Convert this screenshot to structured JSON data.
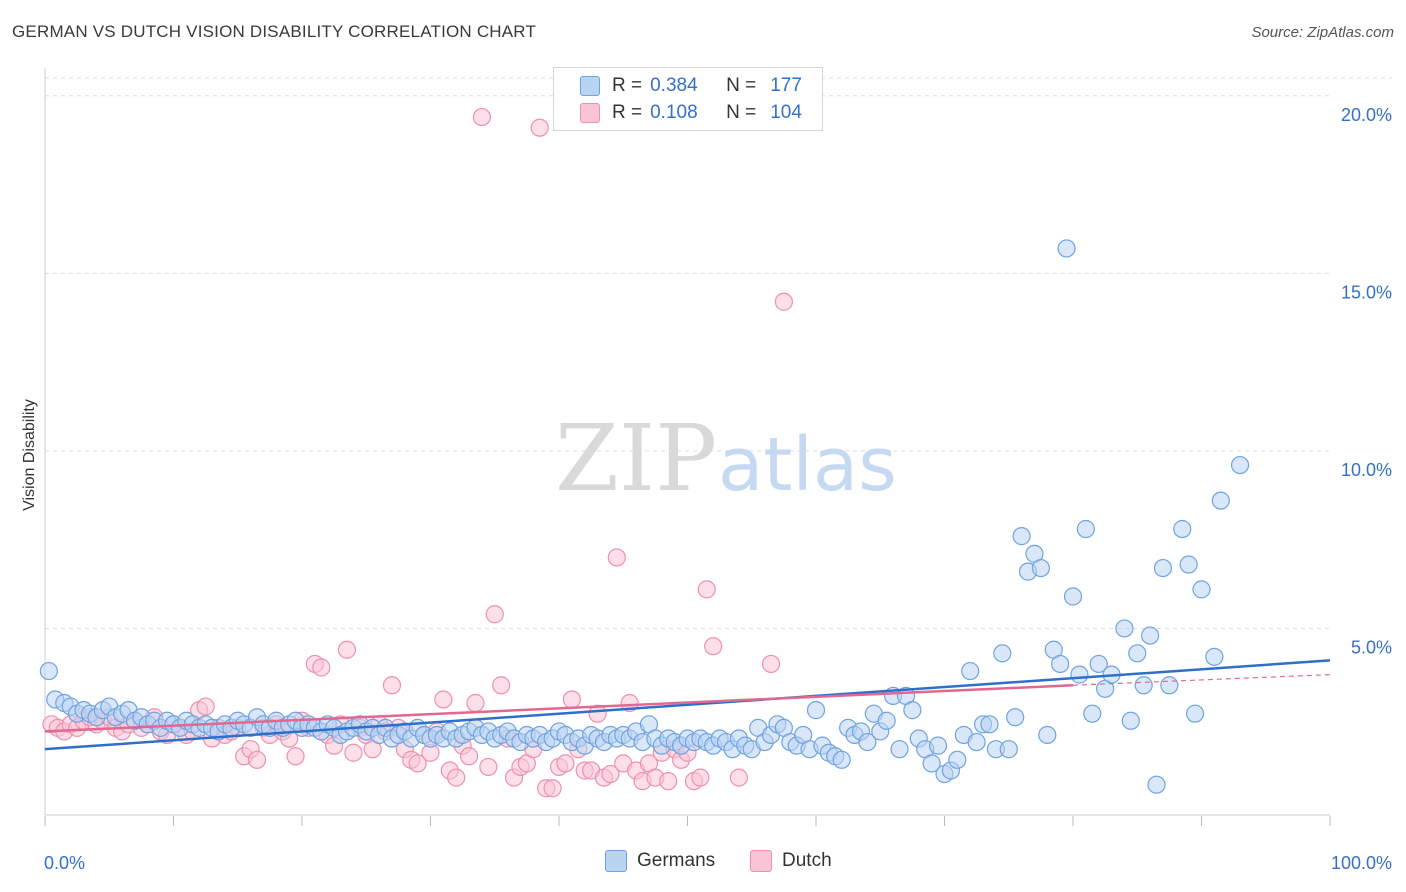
{
  "title": "GERMAN VS DUTCH VISION DISABILITY CORRELATION CHART",
  "source": "Source: ZipAtlas.com",
  "watermark": {
    "zip": "ZIP",
    "atlas": "atlas"
  },
  "colors": {
    "german": "#6fa3e0",
    "german_fill": "#b9d3f3",
    "dutch": "#ef8fb0",
    "dutch_fill": "#f9c4d5",
    "german_line": "#2f6fcc",
    "dutch_line": "#e2688f",
    "tick_text": "#3470c8"
  },
  "legend": {
    "german": {
      "r_label": "R =",
      "r_value": "0.384",
      "n_label": "N =",
      "n_value": "177"
    },
    "dutch": {
      "r_label": "R =",
      "r_value": "0.108",
      "n_label": "N =",
      "n_value": "104"
    }
  },
  "bottom_legend": {
    "german": "Germans",
    "dutch": "Dutch"
  },
  "chart_data": {
    "type": "scatter",
    "title": "GERMAN VS DUTCH VISION DISABILITY CORRELATION CHART",
    "xlabel": "",
    "ylabel": "Vision Disability",
    "xlim": [
      0,
      100
    ],
    "ylim": [
      0,
      20.5
    ],
    "x_tick_labels": [
      "0.0%",
      "100.0%"
    ],
    "y_ticks": [
      5,
      10,
      15,
      20
    ],
    "y_tick_labels": [
      "5.0%",
      "10.0%",
      "15.0%",
      "20.0%"
    ],
    "grid": true,
    "series": [
      {
        "name": "Germans",
        "trend": {
          "x0": 0,
          "y0": 1.6,
          "x1": 100,
          "y1": 4.1
        },
        "points": [
          [
            0.3,
            3.8
          ],
          [
            0.8,
            3.0
          ],
          [
            1.5,
            2.9
          ],
          [
            2.0,
            2.8
          ],
          [
            2.5,
            2.6
          ],
          [
            3.0,
            2.7
          ],
          [
            3.5,
            2.6
          ],
          [
            4.0,
            2.5
          ],
          [
            4.5,
            2.7
          ],
          [
            5.0,
            2.8
          ],
          [
            5.5,
            2.5
          ],
          [
            6.0,
            2.6
          ],
          [
            6.5,
            2.7
          ],
          [
            7.0,
            2.4
          ],
          [
            7.5,
            2.5
          ],
          [
            8.0,
            2.3
          ],
          [
            8.5,
            2.4
          ],
          [
            9.0,
            2.2
          ],
          [
            9.5,
            2.4
          ],
          [
            10.0,
            2.3
          ],
          [
            10.5,
            2.2
          ],
          [
            11.0,
            2.4
          ],
          [
            11.5,
            2.3
          ],
          [
            12.0,
            2.2
          ],
          [
            12.5,
            2.3
          ],
          [
            13.0,
            2.2
          ],
          [
            13.5,
            2.1
          ],
          [
            14.0,
            2.3
          ],
          [
            14.5,
            2.2
          ],
          [
            15.0,
            2.4
          ],
          [
            15.5,
            2.3
          ],
          [
            16.0,
            2.2
          ],
          [
            16.5,
            2.5
          ],
          [
            17.0,
            2.3
          ],
          [
            17.5,
            2.2
          ],
          [
            18.0,
            2.4
          ],
          [
            18.5,
            2.2
          ],
          [
            19.0,
            2.3
          ],
          [
            19.5,
            2.4
          ],
          [
            20.0,
            2.2
          ],
          [
            20.5,
            2.3
          ],
          [
            21.0,
            2.2
          ],
          [
            21.5,
            2.1
          ],
          [
            22.0,
            2.3
          ],
          [
            22.5,
            2.2
          ],
          [
            23.0,
            2.0
          ],
          [
            23.5,
            2.1
          ],
          [
            24.0,
            2.2
          ],
          [
            24.5,
            2.3
          ],
          [
            25.0,
            2.1
          ],
          [
            25.5,
            2.2
          ],
          [
            26.0,
            2.0
          ],
          [
            26.5,
            2.2
          ],
          [
            27.0,
            1.9
          ],
          [
            27.5,
            2.0
          ],
          [
            28.0,
            2.1
          ],
          [
            28.5,
            1.9
          ],
          [
            29.0,
            2.2
          ],
          [
            29.5,
            2.0
          ],
          [
            30.0,
            1.9
          ],
          [
            30.5,
            2.0
          ],
          [
            31.0,
            1.9
          ],
          [
            31.5,
            2.1
          ],
          [
            32.0,
            1.9
          ],
          [
            32.5,
            2.0
          ],
          [
            33.0,
            2.1
          ],
          [
            33.5,
            2.2
          ],
          [
            34.0,
            2.0
          ],
          [
            34.5,
            2.1
          ],
          [
            35.0,
            1.9
          ],
          [
            35.5,
            2.0
          ],
          [
            36.0,
            2.1
          ],
          [
            36.5,
            1.9
          ],
          [
            37.0,
            1.8
          ],
          [
            37.5,
            2.0
          ],
          [
            38.0,
            1.9
          ],
          [
            38.5,
            2.0
          ],
          [
            39.0,
            1.8
          ],
          [
            39.5,
            1.9
          ],
          [
            40.0,
            2.1
          ],
          [
            40.5,
            2.0
          ],
          [
            41.0,
            1.8
          ],
          [
            41.5,
            1.9
          ],
          [
            42.0,
            1.7
          ],
          [
            42.5,
            2.0
          ],
          [
            43.0,
            1.9
          ],
          [
            43.5,
            1.8
          ],
          [
            44.0,
            2.0
          ],
          [
            44.5,
            1.9
          ],
          [
            45.0,
            2.0
          ],
          [
            45.5,
            1.9
          ],
          [
            46.0,
            2.1
          ],
          [
            46.5,
            1.8
          ],
          [
            47.0,
            2.3
          ],
          [
            47.5,
            1.9
          ],
          [
            48.0,
            1.7
          ],
          [
            48.5,
            1.9
          ],
          [
            49.0,
            1.8
          ],
          [
            49.5,
            1.7
          ],
          [
            50.0,
            1.9
          ],
          [
            50.5,
            1.8
          ],
          [
            51.0,
            1.9
          ],
          [
            51.5,
            1.8
          ],
          [
            52.0,
            1.7
          ],
          [
            52.5,
            1.9
          ],
          [
            53.0,
            1.8
          ],
          [
            53.5,
            1.6
          ],
          [
            54.0,
            1.9
          ],
          [
            54.5,
            1.7
          ],
          [
            55.0,
            1.6
          ],
          [
            55.5,
            2.2
          ],
          [
            56.0,
            1.8
          ],
          [
            56.5,
            2.0
          ],
          [
            57.0,
            2.3
          ],
          [
            57.5,
            2.2
          ],
          [
            58.0,
            1.8
          ],
          [
            58.5,
            1.7
          ],
          [
            59.0,
            2.0
          ],
          [
            59.5,
            1.6
          ],
          [
            60.0,
            2.7
          ],
          [
            60.5,
            1.7
          ],
          [
            61.0,
            1.5
          ],
          [
            61.5,
            1.4
          ],
          [
            62.0,
            1.3
          ],
          [
            62.5,
            2.2
          ],
          [
            63.0,
            2.0
          ],
          [
            63.5,
            2.1
          ],
          [
            64.0,
            1.8
          ],
          [
            64.5,
            2.6
          ],
          [
            65.0,
            2.1
          ],
          [
            65.5,
            2.4
          ],
          [
            66.0,
            3.1
          ],
          [
            66.5,
            1.6
          ],
          [
            67.0,
            3.1
          ],
          [
            67.5,
            2.7
          ],
          [
            68.0,
            1.9
          ],
          [
            68.5,
            1.6
          ],
          [
            69.0,
            1.2
          ],
          [
            69.5,
            1.7
          ],
          [
            70.0,
            0.9
          ],
          [
            70.5,
            1.0
          ],
          [
            71.0,
            1.3
          ],
          [
            71.5,
            2.0
          ],
          [
            72.0,
            3.8
          ],
          [
            72.5,
            1.8
          ],
          [
            73.0,
            2.3
          ],
          [
            73.5,
            2.3
          ],
          [
            74.0,
            1.6
          ],
          [
            74.5,
            4.3
          ],
          [
            75.0,
            1.6
          ],
          [
            75.5,
            2.5
          ],
          [
            76.0,
            7.6
          ],
          [
            76.5,
            6.6
          ],
          [
            77.0,
            7.1
          ],
          [
            77.5,
            6.7
          ],
          [
            78.0,
            2.0
          ],
          [
            78.5,
            4.4
          ],
          [
            79.0,
            4.0
          ],
          [
            79.5,
            15.7
          ],
          [
            80.0,
            5.9
          ],
          [
            80.5,
            3.7
          ],
          [
            81.0,
            7.8
          ],
          [
            81.5,
            2.6
          ],
          [
            82.0,
            4.0
          ],
          [
            82.5,
            3.3
          ],
          [
            83.0,
            3.7
          ],
          [
            84.0,
            5.0
          ],
          [
            84.5,
            2.4
          ],
          [
            85.0,
            4.3
          ],
          [
            85.5,
            3.4
          ],
          [
            86.0,
            4.8
          ],
          [
            86.5,
            0.6
          ],
          [
            87.0,
            6.7
          ],
          [
            87.5,
            3.4
          ],
          [
            88.5,
            7.8
          ],
          [
            89.0,
            6.8
          ],
          [
            89.5,
            2.6
          ],
          [
            90.0,
            6.1
          ],
          [
            91.0,
            4.2
          ],
          [
            91.5,
            8.6
          ],
          [
            93.0,
            9.6
          ]
        ]
      },
      {
        "name": "Dutch",
        "trend": {
          "x0": 0,
          "y0": 2.1,
          "x1": 80,
          "y1": 3.4,
          "dash_to_x": 100,
          "dash_to_y": 3.7
        },
        "points": [
          [
            0.5,
            2.3
          ],
          [
            1.0,
            2.2
          ],
          [
            1.5,
            2.1
          ],
          [
            2.0,
            2.3
          ],
          [
            2.5,
            2.2
          ],
          [
            3.0,
            2.4
          ],
          [
            3.5,
            2.5
          ],
          [
            4.0,
            2.3
          ],
          [
            4.5,
            2.4
          ],
          [
            5.0,
            2.5
          ],
          [
            5.5,
            2.2
          ],
          [
            6.0,
            2.1
          ],
          [
            6.5,
            2.3
          ],
          [
            7.0,
            2.4
          ],
          [
            7.5,
            2.2
          ],
          [
            8.0,
            2.3
          ],
          [
            8.5,
            2.5
          ],
          [
            9.0,
            2.1
          ],
          [
            9.5,
            2.0
          ],
          [
            10.0,
            2.3
          ],
          [
            10.5,
            2.2
          ],
          [
            11.0,
            2.0
          ],
          [
            11.5,
            2.1
          ],
          [
            12.0,
            2.7
          ],
          [
            12.5,
            2.8
          ],
          [
            13.0,
            1.9
          ],
          [
            13.5,
            2.2
          ],
          [
            14.0,
            2.0
          ],
          [
            14.5,
            2.1
          ],
          [
            15.0,
            2.2
          ],
          [
            15.5,
            1.4
          ],
          [
            16.0,
            1.6
          ],
          [
            16.5,
            1.3
          ],
          [
            17.0,
            2.2
          ],
          [
            17.5,
            2.0
          ],
          [
            18.0,
            2.3
          ],
          [
            18.5,
            2.1
          ],
          [
            19.0,
            1.9
          ],
          [
            19.5,
            1.4
          ],
          [
            20.0,
            2.4
          ],
          [
            20.5,
            2.2
          ],
          [
            21.0,
            4.0
          ],
          [
            21.5,
            3.9
          ],
          [
            22.0,
            2.0
          ],
          [
            22.5,
            1.7
          ],
          [
            23.0,
            2.3
          ],
          [
            23.5,
            4.4
          ],
          [
            24.0,
            1.5
          ],
          [
            24.5,
            2.2
          ],
          [
            25.0,
            2.0
          ],
          [
            25.5,
            1.6
          ],
          [
            26.0,
            2.3
          ],
          [
            26.5,
            2.1
          ],
          [
            27.0,
            3.4
          ],
          [
            27.5,
            2.2
          ],
          [
            28.0,
            1.6
          ],
          [
            28.5,
            1.3
          ],
          [
            29.0,
            1.2
          ],
          [
            29.5,
            2.0
          ],
          [
            30.0,
            1.5
          ],
          [
            30.5,
            2.1
          ],
          [
            31.0,
            3.0
          ],
          [
            31.5,
            1.0
          ],
          [
            32.0,
            0.8
          ],
          [
            32.5,
            1.7
          ],
          [
            33.0,
            1.4
          ],
          [
            33.5,
            2.9
          ],
          [
            34.0,
            19.4
          ],
          [
            34.5,
            1.1
          ],
          [
            35.0,
            5.4
          ],
          [
            35.5,
            3.4
          ],
          [
            36.0,
            1.9
          ],
          [
            36.5,
            0.8
          ],
          [
            37.0,
            1.1
          ],
          [
            37.5,
            1.2
          ],
          [
            38.0,
            1.6
          ],
          [
            38.5,
            19.1
          ],
          [
            39.0,
            0.5
          ],
          [
            39.5,
            0.5
          ],
          [
            40.0,
            1.1
          ],
          [
            40.5,
            1.2
          ],
          [
            41.0,
            3.0
          ],
          [
            41.5,
            1.6
          ],
          [
            42.0,
            1.0
          ],
          [
            42.5,
            1.0
          ],
          [
            43.0,
            2.6
          ],
          [
            43.5,
            0.8
          ],
          [
            44.0,
            0.9
          ],
          [
            44.5,
            7.0
          ],
          [
            45.0,
            1.2
          ],
          [
            45.5,
            2.9
          ],
          [
            46.0,
            1.0
          ],
          [
            46.5,
            0.7
          ],
          [
            47.0,
            1.2
          ],
          [
            47.5,
            0.8
          ],
          [
            48.0,
            1.5
          ],
          [
            48.5,
            0.7
          ],
          [
            49.0,
            1.6
          ],
          [
            49.5,
            1.3
          ],
          [
            50.0,
            1.5
          ],
          [
            50.5,
            0.7
          ],
          [
            51.0,
            0.8
          ],
          [
            51.5,
            6.1
          ],
          [
            52.0,
            4.5
          ],
          [
            54.0,
            0.8
          ],
          [
            56.5,
            4.0
          ],
          [
            57.5,
            14.2
          ]
        ]
      }
    ]
  }
}
